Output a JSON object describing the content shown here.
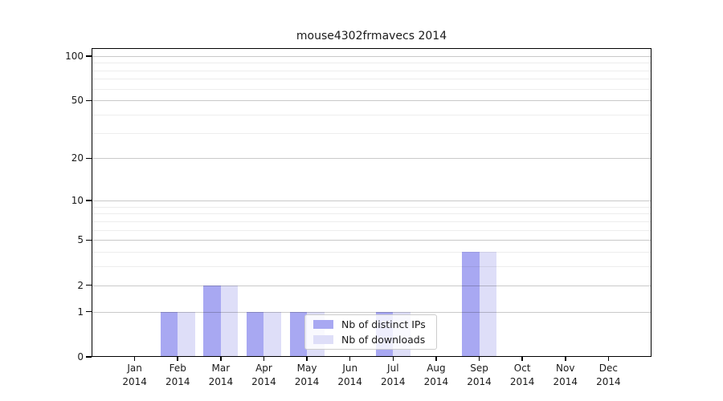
{
  "chart_data": {
    "type": "bar",
    "title": "mouse4302frmavecs 2014",
    "categories": [
      "Jan",
      "Feb",
      "Mar",
      "Apr",
      "May",
      "Jun",
      "Jul",
      "Aug",
      "Sep",
      "Oct",
      "Nov",
      "Dec"
    ],
    "tick_year": "2014",
    "series": [
      {
        "name": "Nb of distinct IPs",
        "color": "#a8a8f2",
        "values": [
          0,
          1,
          2,
          1,
          1,
          0,
          1,
          0,
          4,
          0,
          0,
          0
        ]
      },
      {
        "name": "Nb of downloads",
        "color": "#dedef8",
        "values": [
          0,
          1,
          2,
          1,
          1,
          0,
          1,
          0,
          4,
          0,
          0,
          0
        ]
      }
    ],
    "xlabel": "",
    "ylabel": "",
    "y_scale": "log1p",
    "yticks": [
      0,
      1,
      2,
      5,
      10,
      20,
      50,
      100
    ],
    "y_minor_gridlines": [
      3,
      4,
      6,
      7,
      8,
      9,
      30,
      40,
      60,
      70,
      80,
      90
    ],
    "ylim": [
      0,
      113
    ],
    "grid": "horizontal",
    "legend_position": "inside-bottom-center"
  }
}
